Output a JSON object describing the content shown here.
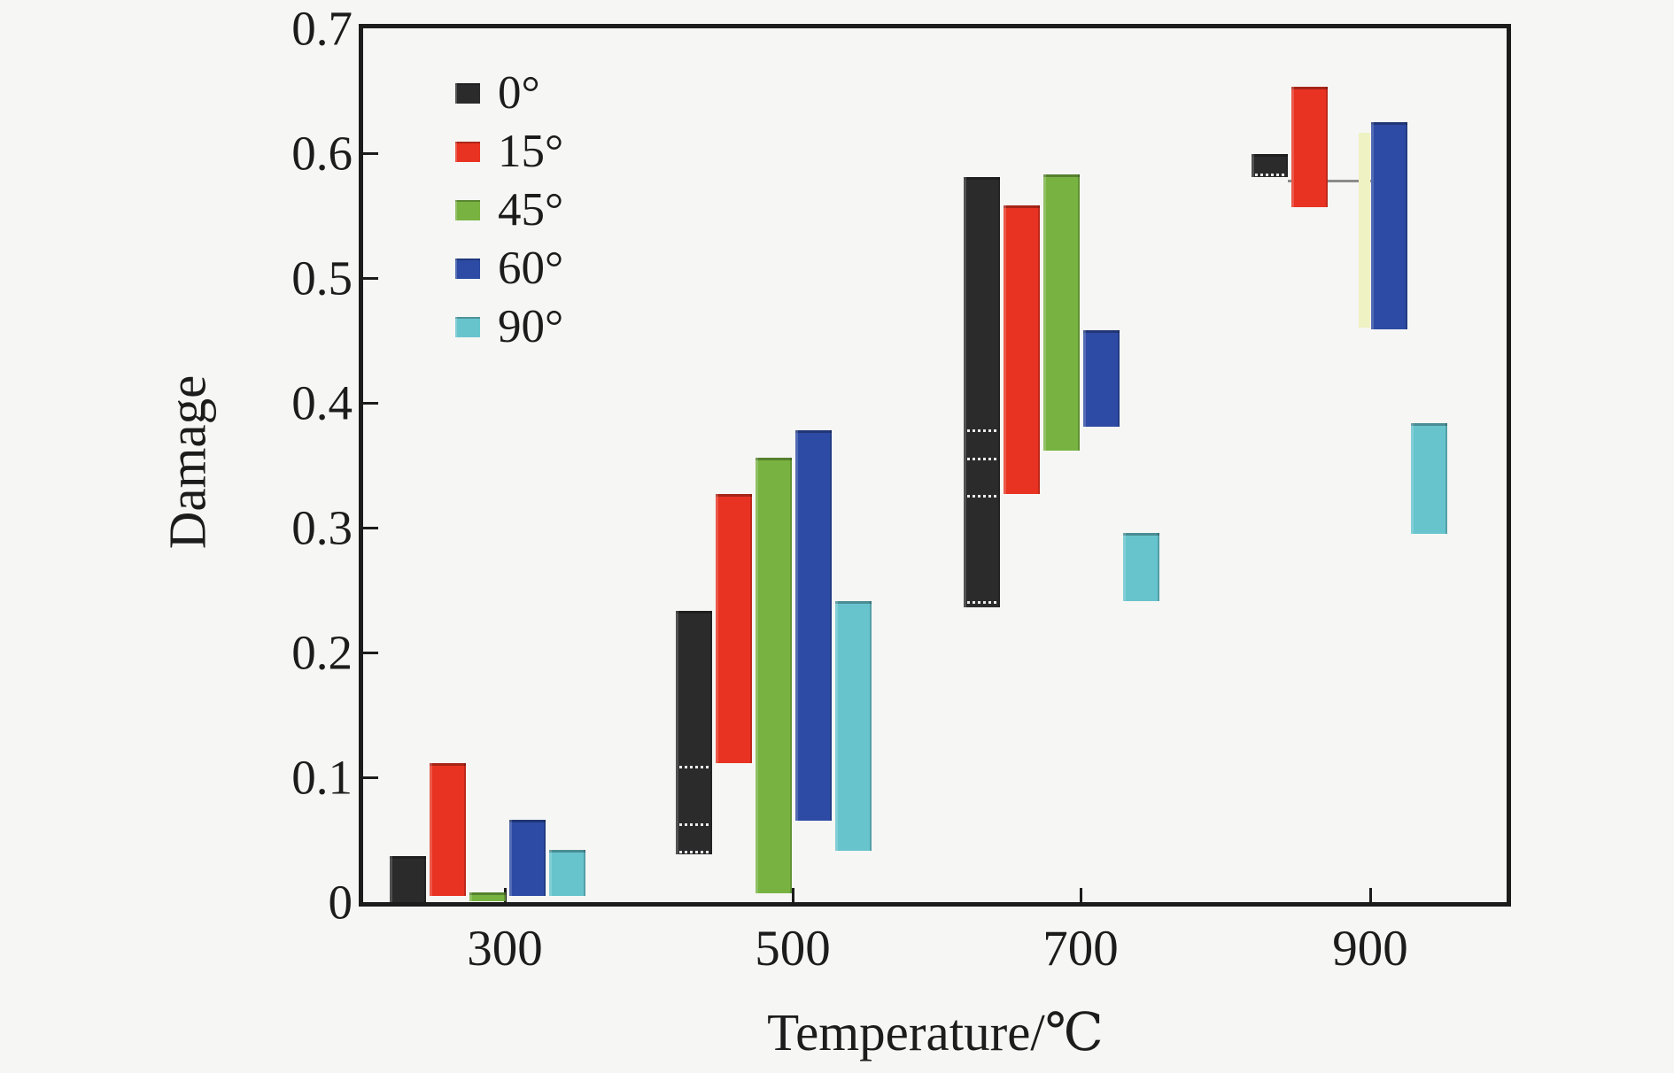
{
  "chart_data": {
    "type": "bar",
    "subtype": "floating-range-bars",
    "title": "",
    "xlabel": "Temperature/℃",
    "ylabel": "Damage",
    "categories": [
      "300",
      "500",
      "700",
      "900"
    ],
    "ylim": [
      0,
      0.7
    ],
    "grid": false,
    "legend_position": "upper-left-inside",
    "yticks": [
      {
        "value": 0.0,
        "label": "0"
      },
      {
        "value": 0.1,
        "label": "0.1"
      },
      {
        "value": 0.2,
        "label": "0.2"
      },
      {
        "value": 0.3,
        "label": "0.3"
      },
      {
        "value": 0.4,
        "label": "0.4"
      },
      {
        "value": 0.5,
        "label": "0.5"
      },
      {
        "value": 0.6,
        "label": "0.6"
      },
      {
        "value": 0.7,
        "label": "0.7"
      }
    ],
    "series": [
      {
        "id": "deg0",
        "name": "0°",
        "color": "#2b2b2b",
        "ranges": [
          [
            0.0,
            0.037
          ],
          [
            0.038,
            0.233
          ],
          [
            0.236,
            0.581
          ],
          [
            0.581,
            0.599
          ]
        ],
        "markers": [
          [],
          [
            0.041,
            0.063,
            0.109
          ],
          [
            0.241,
            0.326,
            0.356,
            0.379
          ],
          [
            0.584
          ]
        ]
      },
      {
        "id": "deg15",
        "name": "15°",
        "color": "#e83322",
        "ranges": [
          [
            0.005,
            0.111
          ],
          [
            0.111,
            0.327
          ],
          [
            0.327,
            0.558
          ],
          [
            0.557,
            0.653
          ]
        ],
        "markers": [
          [],
          [],
          [],
          []
        ]
      },
      {
        "id": "deg45",
        "name": "45°",
        "color": "#78b341",
        "ranges": [
          [
            0.001,
            0.008
          ],
          [
            0.007,
            0.356
          ],
          [
            0.362,
            0.583
          ],
          [
            0.46,
            0.616
          ]
        ],
        "markers": [
          [],
          [],
          [],
          []
        ],
        "hidden_behind_next_at": "900",
        "hidden_color": "#eff2c2"
      },
      {
        "id": "deg60",
        "name": "60°",
        "color": "#2d4ba4",
        "ranges": [
          [
            0.005,
            0.066
          ],
          [
            0.065,
            0.378
          ],
          [
            0.381,
            0.458
          ],
          [
            0.459,
            0.625
          ]
        ],
        "markers": [
          [],
          [],
          [],
          []
        ]
      },
      {
        "id": "deg90",
        "name": "90°",
        "color": "#67c4cd",
        "ranges": [
          [
            0.005,
            0.042
          ],
          [
            0.041,
            0.241
          ],
          [
            0.241,
            0.296
          ],
          [
            0.295,
            0.384
          ]
        ],
        "markers": [
          [],
          [],
          [],
          []
        ]
      }
    ],
    "annotations": [
      {
        "type": "hline-segment",
        "temp": "900",
        "value": 0.578,
        "description": "gray whisker line from 0° bar toward 60° bar"
      }
    ]
  }
}
